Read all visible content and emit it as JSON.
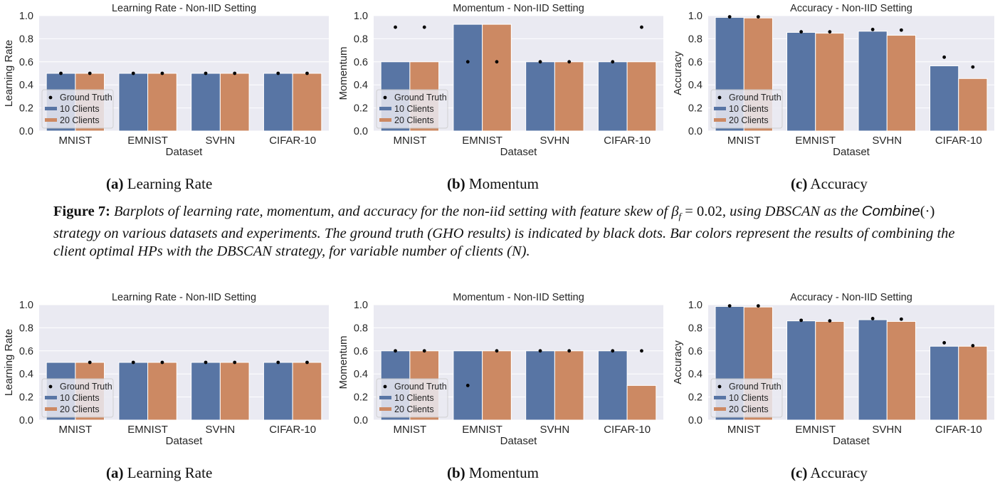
{
  "colors": {
    "bg": "#eaeaf2",
    "grid": "#ffffff",
    "series1": "#5875a4",
    "series2": "#cc8963",
    "truth": "#000000",
    "text": "#262626"
  },
  "figure7": {
    "label": "Figure 7:",
    "caption_a": "Barplots of learning rate, momentum, and accuracy for the non-iid setting with feature skew of",
    "caption_math": "β",
    "caption_math_sub": "f",
    "caption_math_eq": " = 0.02",
    "caption_b": ", using DBSCAN as the",
    "caption_combine": "Combine",
    "caption_combine_arg": "(·)",
    "caption_c": "strategy on various datasets and experiments. The ground truth (GHO results) is indicated by black dots. Bar colors represent the results of combining the client optimal HPs with the DBSCAN strategy, for variable number of clients (",
    "caption_n": "N",
    "caption_d": ")."
  },
  "subcaptions": {
    "row1": [
      {
        "tag": "(a)",
        "text": "Learning Rate"
      },
      {
        "tag": "(b)",
        "text": "Momentum"
      },
      {
        "tag": "(c)",
        "text": "Accuracy"
      }
    ],
    "row2": [
      {
        "tag": "(a)",
        "text": "Learning Rate"
      },
      {
        "tag": "(b)",
        "text": "Momentum"
      },
      {
        "tag": "(c)",
        "text": "Accuracy"
      }
    ]
  },
  "chart_data": [
    {
      "type": "bar",
      "title": "Learning Rate - Non-IID Setting",
      "xlabel": "Dataset",
      "ylabel": "Learning Rate",
      "categories": [
        "MNIST",
        "EMNIST",
        "SVHN",
        "CIFAR-10"
      ],
      "ylim": [
        0,
        1.0
      ],
      "yticks": [
        "0.0",
        "0.2",
        "0.4",
        "0.6",
        "0.8",
        "1.0"
      ],
      "series": [
        {
          "name": "10 Clients",
          "values": [
            0.5,
            0.5,
            0.5,
            0.5
          ],
          "truth": [
            0.5,
            0.5,
            0.5,
            0.5
          ]
        },
        {
          "name": "20 Clients",
          "values": [
            0.5,
            0.5,
            0.5,
            0.5
          ],
          "truth": [
            0.5,
            0.5,
            0.5,
            0.5
          ]
        }
      ],
      "legend": [
        "Ground Truth",
        "10 Clients",
        "20 Clients"
      ],
      "legend_position": "lower-left",
      "grid": true
    },
    {
      "type": "bar",
      "title": "Momentum - Non-IID Setting",
      "xlabel": "Dataset",
      "ylabel": "Momentum",
      "categories": [
        "MNIST",
        "EMNIST",
        "SVHN",
        "CIFAR-10"
      ],
      "ylim": [
        0,
        1.0
      ],
      "yticks": [
        "0.0",
        "0.2",
        "0.4",
        "0.6",
        "0.8",
        "1.0"
      ],
      "series": [
        {
          "name": "10 Clients",
          "values": [
            0.6,
            0.925,
            0.6,
            0.6
          ],
          "truth": [
            0.9,
            0.6,
            0.6,
            0.6
          ]
        },
        {
          "name": "20 Clients",
          "values": [
            0.6,
            0.925,
            0.6,
            0.6
          ],
          "truth": [
            0.9,
            0.6,
            0.6,
            0.9
          ]
        }
      ],
      "legend": [
        "Ground Truth",
        "10 Clients",
        "20 Clients"
      ],
      "legend_position": "lower-left",
      "grid": true
    },
    {
      "type": "bar",
      "title": "Accuracy - Non-IID Setting",
      "xlabel": "Dataset",
      "ylabel": "Accuracy",
      "categories": [
        "MNIST",
        "EMNIST",
        "SVHN",
        "CIFAR-10"
      ],
      "ylim": [
        0,
        1.0
      ],
      "yticks": [
        "0.0",
        "0.2",
        "0.4",
        "0.6",
        "0.8",
        "1.0"
      ],
      "series": [
        {
          "name": "10 Clients",
          "values": [
            0.985,
            0.855,
            0.865,
            0.565
          ],
          "truth": [
            0.99,
            0.86,
            0.88,
            0.64
          ]
        },
        {
          "name": "20 Clients",
          "values": [
            0.98,
            0.848,
            0.83,
            0.455
          ],
          "truth": [
            0.99,
            0.86,
            0.875,
            0.555
          ]
        }
      ],
      "legend": [
        "Ground Truth",
        "10 Clients",
        "20 Clients"
      ],
      "legend_position": "lower-left",
      "grid": true
    },
    {
      "type": "bar",
      "title": "Learning Rate - Non-IID Setting",
      "xlabel": "Dataset",
      "ylabel": "Learning Rate",
      "categories": [
        "MNIST",
        "EMNIST",
        "SVHN",
        "CIFAR-10"
      ],
      "ylim": [
        0,
        1.0
      ],
      "yticks": [
        "0.0",
        "0.2",
        "0.4",
        "0.6",
        "0.8",
        "1.0"
      ],
      "series": [
        {
          "name": "10 Clients",
          "values": [
            0.5,
            0.5,
            0.5,
            0.5
          ],
          "truth": [
            null,
            0.5,
            0.5,
            0.5
          ]
        },
        {
          "name": "20 Clients",
          "values": [
            0.5,
            0.5,
            0.5,
            0.5
          ],
          "truth": [
            0.5,
            0.5,
            0.5,
            0.5
          ]
        }
      ],
      "legend": [
        "Ground Truth",
        "10 Clients",
        "20 Clients"
      ],
      "legend_position": "lower-left",
      "grid": true
    },
    {
      "type": "bar",
      "title": "Momentum - Non-IID Setting",
      "xlabel": "Dataset",
      "ylabel": "Momentum",
      "categories": [
        "MNIST",
        "EMNIST",
        "SVHN",
        "CIFAR-10"
      ],
      "ylim": [
        0,
        1.0
      ],
      "yticks": [
        "0.0",
        "0.2",
        "0.4",
        "0.6",
        "0.8",
        "1.0"
      ],
      "series": [
        {
          "name": "10 Clients",
          "values": [
            0.6,
            0.6,
            0.6,
            0.6
          ],
          "truth": [
            0.6,
            0.3,
            0.6,
            0.6
          ]
        },
        {
          "name": "20 Clients",
          "values": [
            0.6,
            0.6,
            0.6,
            0.3
          ],
          "truth": [
            0.6,
            0.6,
            0.6,
            0.6
          ]
        }
      ],
      "legend": [
        "Ground Truth",
        "10 Clients",
        "20 Clients"
      ],
      "legend_position": "lower-left",
      "grid": true
    },
    {
      "type": "bar",
      "title": "Accuracy - Non-IID Setting",
      "xlabel": "Dataset",
      "ylabel": "Accuracy",
      "categories": [
        "MNIST",
        "EMNIST",
        "SVHN",
        "CIFAR-10"
      ],
      "ylim": [
        0,
        1.0
      ],
      "yticks": [
        "0.0",
        "0.2",
        "0.4",
        "0.6",
        "0.8",
        "1.0"
      ],
      "series": [
        {
          "name": "10 Clients",
          "values": [
            0.985,
            0.86,
            0.87,
            0.64
          ],
          "truth": [
            0.99,
            0.865,
            0.88,
            0.67
          ]
        },
        {
          "name": "20 Clients",
          "values": [
            0.98,
            0.855,
            0.855,
            0.64
          ],
          "truth": [
            0.99,
            0.86,
            0.875,
            0.645
          ]
        }
      ],
      "legend": [
        "Ground Truth",
        "10 Clients",
        "20 Clients"
      ],
      "legend_position": "lower-left",
      "grid": true
    }
  ]
}
